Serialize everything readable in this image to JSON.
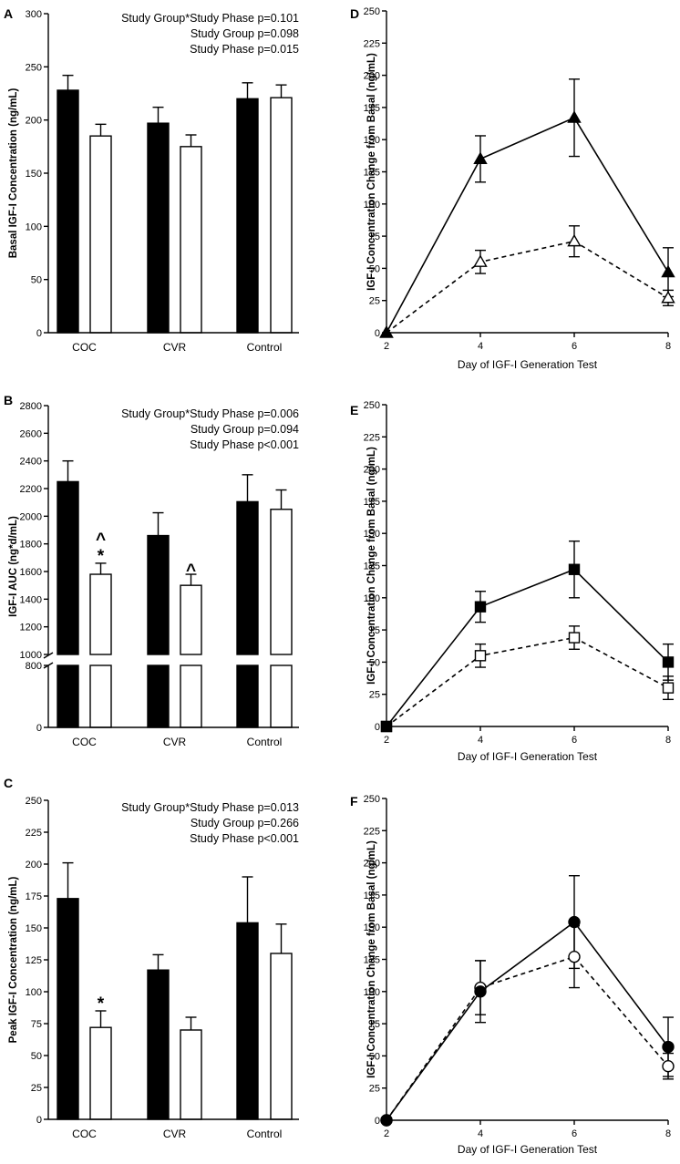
{
  "chart_data": [
    {
      "panel": "A",
      "type": "bar",
      "ylabel": "Basal IGF-I Concentration (ng/mL)",
      "categories": [
        "COC",
        "CVR",
        "Control"
      ],
      "ylim": [
        0,
        300
      ],
      "yticks": [
        0,
        50,
        100,
        150,
        200,
        250,
        300
      ],
      "series": [
        {
          "name": "filled",
          "fill": "#000000",
          "values": [
            228,
            197,
            220
          ],
          "errors": [
            14,
            15,
            15
          ]
        },
        {
          "name": "open",
          "fill": "#ffffff",
          "values": [
            185,
            175,
            221
          ],
          "errors": [
            11,
            11,
            12
          ]
        }
      ],
      "annotations": [
        "Study Group*Study Phase p=0.101",
        "Study Group p=0.098",
        "Study Phase p=0.015"
      ],
      "markers": []
    },
    {
      "panel": "B",
      "type": "bar",
      "ylabel": "IGF-I AUC (ng*d/mL)",
      "categories": [
        "COC",
        "CVR",
        "Control"
      ],
      "ylim": [
        0,
        2800
      ],
      "axis_break": [
        800,
        1000
      ],
      "yticks": [
        0,
        800,
        1000,
        1200,
        1400,
        1600,
        1800,
        2000,
        2200,
        2400,
        2600,
        2800
      ],
      "series": [
        {
          "name": "filled",
          "fill": "#000000",
          "values": [
            2250,
            1860,
            2105
          ],
          "errors": [
            150,
            165,
            195
          ]
        },
        {
          "name": "open",
          "fill": "#ffffff",
          "values": [
            1580,
            1500,
            2050
          ],
          "errors": [
            80,
            80,
            140
          ]
        }
      ],
      "annotations": [
        "Study Group*Study Phase p=0.006",
        "Study Group p=0.094",
        "Study Phase p<0.001"
      ],
      "markers": [
        {
          "category": 0,
          "series": 1,
          "symbols": [
            "*",
            "^"
          ]
        },
        {
          "category": 1,
          "series": 1,
          "symbols": [
            "^"
          ]
        }
      ]
    },
    {
      "panel": "C",
      "type": "bar",
      "ylabel": "Peak IGF-I Concentration (ng/mL)",
      "categories": [
        "COC",
        "CVR",
        "Control"
      ],
      "ylim": [
        0,
        250
      ],
      "yticks": [
        0,
        25,
        50,
        75,
        100,
        125,
        150,
        175,
        200,
        225,
        250
      ],
      "series": [
        {
          "name": "filled",
          "fill": "#000000",
          "values": [
            173,
            117,
            154
          ],
          "errors": [
            28,
            12,
            36
          ]
        },
        {
          "name": "open",
          "fill": "#ffffff",
          "values": [
            72,
            70,
            130
          ],
          "errors": [
            13,
            10,
            23
          ]
        }
      ],
      "annotations": [
        "Study Group*Study Phase p=0.013",
        "Study Group p=0.266",
        "Study Phase p<0.001"
      ],
      "markers": [
        {
          "category": 0,
          "series": 1,
          "symbols": [
            "*"
          ]
        }
      ]
    },
    {
      "panel": "D",
      "type": "line",
      "xlabel": "Day of IGF-I  Generation Test",
      "ylabel": "IGF-I Concentration Change from Basal  (ng/mL)",
      "x": [
        2,
        4,
        6,
        8
      ],
      "xlim": [
        2,
        8
      ],
      "ylim": [
        0,
        250
      ],
      "yticks": [
        0,
        25,
        50,
        75,
        100,
        125,
        150,
        175,
        200,
        225,
        250
      ],
      "series": [
        {
          "name": "filled-triangle",
          "marker": "triangle",
          "filled": true,
          "dashed": false,
          "values": [
            0,
            135,
            167,
            47
          ],
          "errors": [
            0,
            18,
            30,
            19
          ]
        },
        {
          "name": "open-triangle",
          "marker": "triangle",
          "filled": false,
          "dashed": true,
          "values": [
            0,
            55,
            71,
            27
          ],
          "errors": [
            0,
            9,
            12,
            6
          ]
        }
      ]
    },
    {
      "panel": "E",
      "type": "line",
      "xlabel": "Day of IGF-I  Generation Test",
      "ylabel": "IGF-I Concentration Change from Basal  (ng/mL)",
      "x": [
        2,
        4,
        6,
        8
      ],
      "xlim": [
        2,
        8
      ],
      "ylim": [
        0,
        250
      ],
      "yticks": [
        0,
        25,
        50,
        75,
        100,
        125,
        150,
        175,
        200,
        225,
        250
      ],
      "series": [
        {
          "name": "filled-square",
          "marker": "square",
          "filled": true,
          "dashed": false,
          "values": [
            0,
            93,
            122,
            50
          ],
          "errors": [
            0,
            12,
            22,
            14
          ]
        },
        {
          "name": "open-square",
          "marker": "square",
          "filled": false,
          "dashed": true,
          "values": [
            0,
            55,
            69,
            30
          ],
          "errors": [
            0,
            9,
            9,
            9
          ]
        }
      ]
    },
    {
      "panel": "F",
      "type": "line",
      "xlabel": "Day of IGF-I Generation Test",
      "ylabel": "IGF-I Concentration Change from Basal  (ng/mL)",
      "x": [
        2,
        4,
        6,
        8
      ],
      "xlim": [
        2,
        8
      ],
      "ylim": [
        0,
        250
      ],
      "yticks": [
        0,
        25,
        50,
        75,
        100,
        125,
        150,
        175,
        200,
        225,
        250
      ],
      "series": [
        {
          "name": "filled-circle",
          "marker": "circle",
          "filled": true,
          "dashed": false,
          "values": [
            0,
            100,
            154,
            57
          ],
          "errors": [
            0,
            24,
            36,
            23
          ]
        },
        {
          "name": "open-circle",
          "marker": "circle",
          "filled": false,
          "dashed": true,
          "values": [
            0,
            103,
            127,
            42
          ],
          "errors": [
            0,
            21,
            24,
            10
          ]
        }
      ]
    }
  ]
}
